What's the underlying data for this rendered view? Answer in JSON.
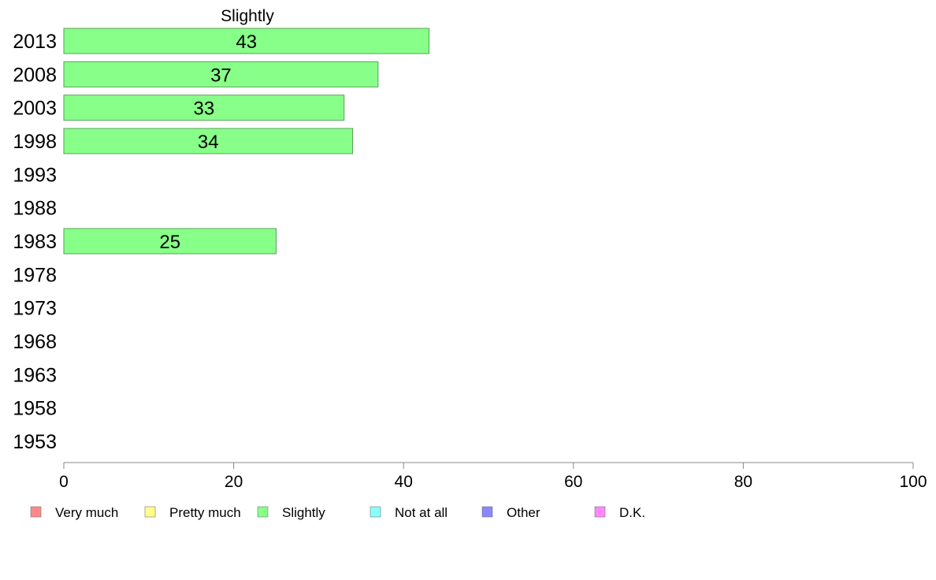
{
  "chart_data": {
    "type": "bar",
    "orientation": "horizontal",
    "title": "Slightly",
    "categories": [
      "2013",
      "2008",
      "2003",
      "1998",
      "1993",
      "1988",
      "1983",
      "1978",
      "1973",
      "1968",
      "1963",
      "1958",
      "1953"
    ],
    "series": [
      {
        "name": "Slightly",
        "values": [
          43,
          37,
          33,
          34,
          null,
          null,
          25,
          null,
          null,
          null,
          null,
          null,
          null
        ],
        "color": "#88ff88"
      }
    ],
    "xlim": [
      0,
      100
    ],
    "xticks": [
      0,
      20,
      40,
      60,
      80,
      100
    ],
    "grid": false,
    "legend_placement": "bottom",
    "legend": [
      {
        "label": "Very much",
        "color": "#ff8888"
      },
      {
        "label": "Pretty much",
        "color": "#ffff88"
      },
      {
        "label": "Slightly",
        "color": "#88ff88"
      },
      {
        "label": "Not at all",
        "color": "#88ffff"
      },
      {
        "label": "Other",
        "color": "#8888ff"
      },
      {
        "label": "D.K.",
        "color": "#ff88ff"
      }
    ]
  }
}
